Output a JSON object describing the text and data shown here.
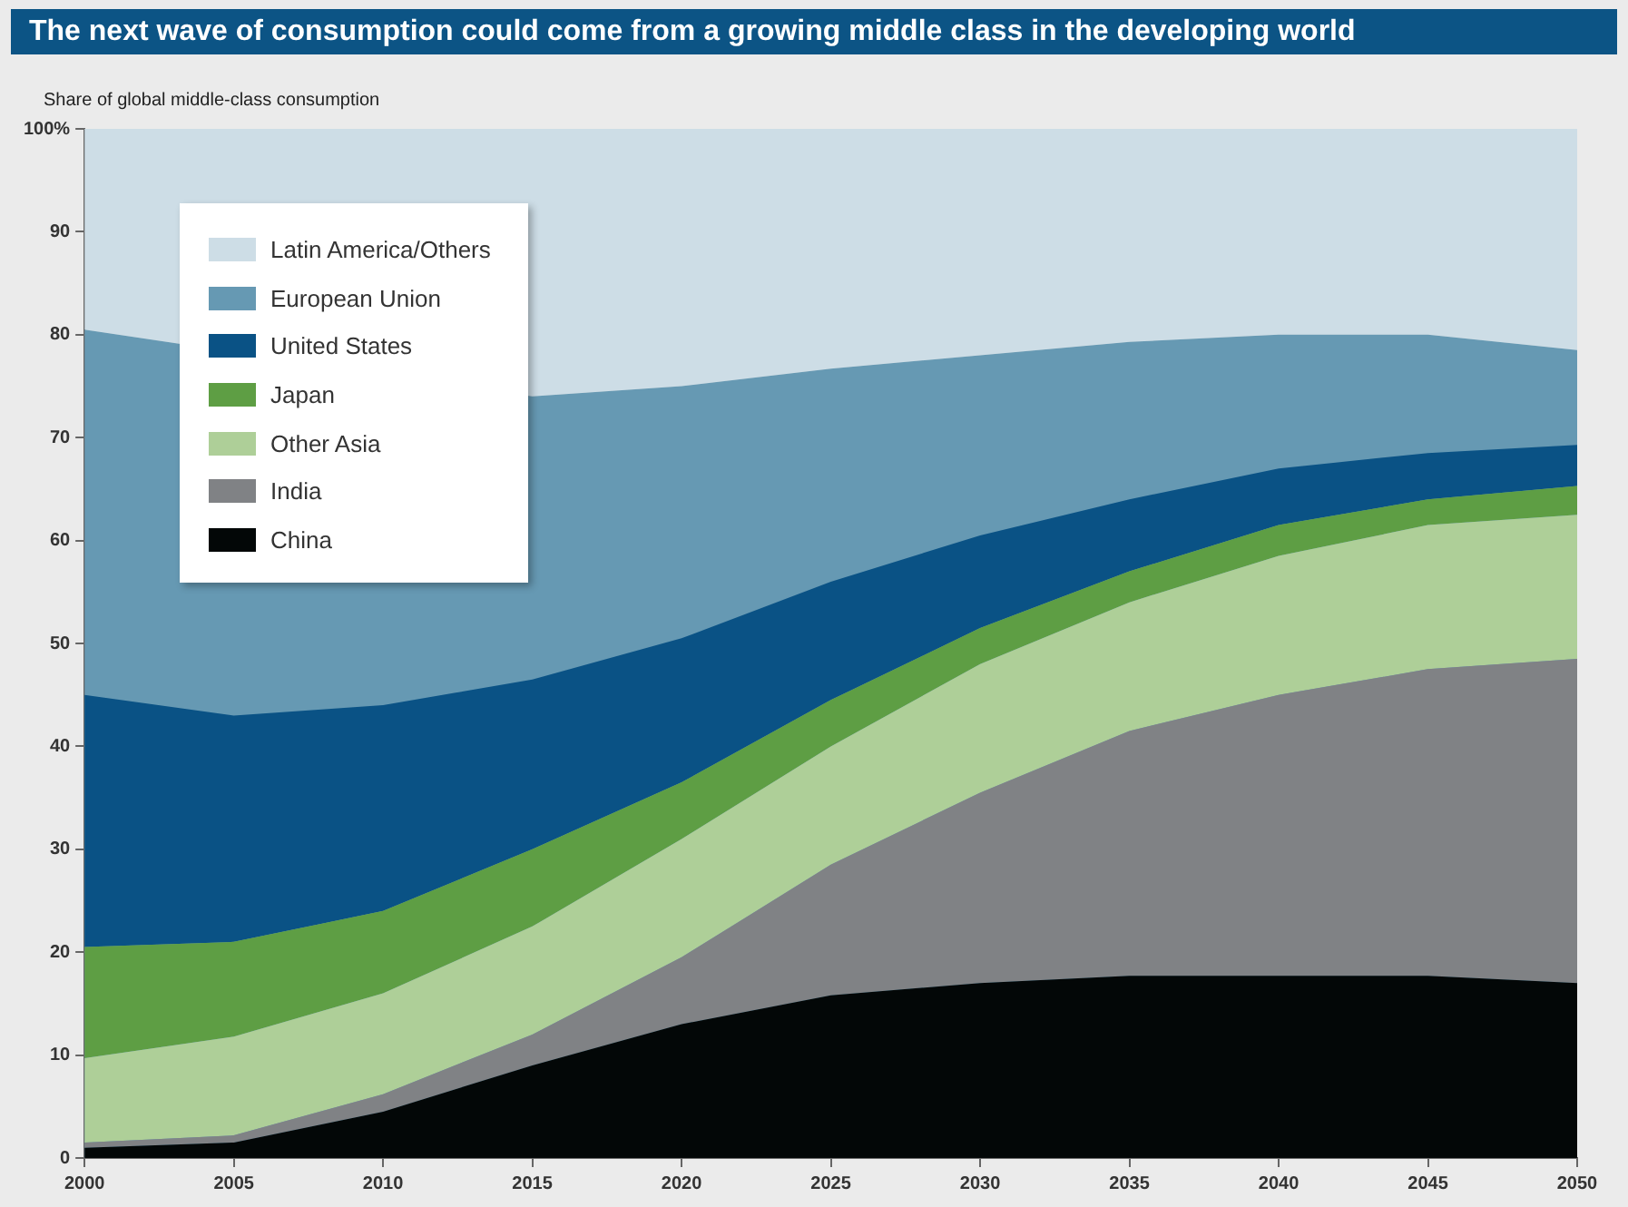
{
  "chart_data": {
    "type": "area",
    "stacked": true,
    "title": "The next wave of consumption could come from a growing middle class in the developing world",
    "ylabel": "Share of global middle-class consumption",
    "x": [
      2000,
      2005,
      2010,
      2015,
      2020,
      2025,
      2030,
      2035,
      2040,
      2045,
      2050
    ],
    "xlim": [
      2000,
      2050
    ],
    "xticks": [
      2000,
      2005,
      2010,
      2015,
      2020,
      2025,
      2030,
      2035,
      2040,
      2045,
      2050
    ],
    "ylim": [
      0,
      100
    ],
    "yticks": [
      0,
      10,
      20,
      30,
      40,
      50,
      60,
      70,
      80,
      90,
      {
        "value": 100,
        "label": "100%"
      }
    ],
    "grid": false,
    "legend": "top left",
    "series": [
      {
        "name": "China",
        "color": "#030707",
        "values": [
          1,
          1.5,
          4.5,
          9,
          13,
          15.8,
          17,
          17.7,
          17.7,
          17.7,
          17
        ]
      },
      {
        "name": "India",
        "color": "#808285",
        "values": [
          0.5,
          0.7,
          1.7,
          3,
          6.5,
          12.7,
          18.5,
          23.8,
          27.3,
          29.8,
          31.5
        ]
      },
      {
        "name": "Other Asia",
        "color": "#aecf98",
        "values": [
          8.2,
          9.6,
          9.8,
          10.5,
          11.5,
          11.5,
          12.5,
          12.5,
          13.5,
          14,
          14
        ]
      },
      {
        "name": "Japan",
        "color": "#5e9e44",
        "values": [
          10.8,
          9.2,
          8,
          7.5,
          5.5,
          4.5,
          3.5,
          3,
          3,
          2.5,
          2.8
        ]
      },
      {
        "name": "United States",
        "color": "#0a5285",
        "values": [
          24.5,
          22,
          20,
          16.5,
          14,
          11.5,
          9,
          7,
          5.5,
          4.5,
          4
        ]
      },
      {
        "name": "European Union",
        "color": "#6699b3",
        "values": [
          35.5,
          null,
          null,
          27.5,
          24.5,
          20.7,
          17.5,
          15.3,
          13,
          11.5,
          9.2
        ]
      },
      {
        "name": "Latin America/Others",
        "color": "#cddde6",
        "values": [
          19.5,
          null,
          null,
          26,
          25,
          23.3,
          22,
          20.7,
          20,
          20,
          21.5
        ]
      }
    ]
  }
}
